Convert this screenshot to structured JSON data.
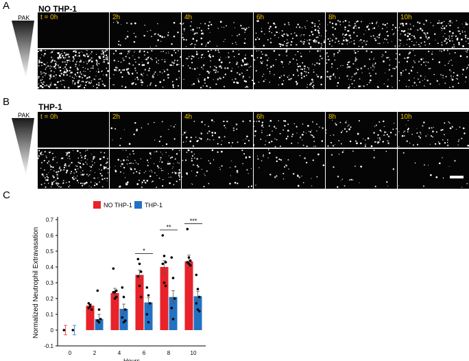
{
  "figure": {
    "panels": [
      {
        "letter": "A",
        "title": "NO THP-1",
        "gradient_label": "PAK",
        "timepoints": [
          "t = 0h",
          "2h",
          "4h",
          "6h",
          "8h",
          "10h"
        ]
      },
      {
        "letter": "B",
        "title": "THP-1",
        "gradient_label": "PAK",
        "timepoints": [
          "t = 0h",
          "2h",
          "4h",
          "6h",
          "8h",
          "10h"
        ]
      }
    ],
    "chart_letter": "C"
  },
  "colors": {
    "no_thp1": "#e8222a",
    "thp1": "#2272c3",
    "timepoint_label": "#f2c200"
  },
  "chart_data": {
    "type": "bar",
    "ylabel": "Normalized Neutrophil Extravasation",
    "xlabel": "Hours",
    "ylim": [
      -0.1,
      0.7
    ],
    "yticks": [
      "-0.1",
      "0",
      "0.1",
      "0.2",
      "0.3",
      "0.4",
      "0.5",
      "0.6",
      "0.7"
    ],
    "categories": [
      "0",
      "2",
      "4",
      "6",
      "8",
      "10"
    ],
    "legend_position": "top",
    "series": [
      {
        "name": "NO THP-1",
        "values": [
          0.0,
          0.155,
          0.235,
          0.35,
          0.4,
          0.435
        ],
        "errors": [
          0.03,
          0.01,
          0.03,
          0.03,
          0.04,
          0.04
        ],
        "points": [
          [
            0.0
          ],
          [
            0.17,
            0.15,
            0.13,
            0.14,
            0.16
          ],
          [
            0.39,
            0.24,
            0.21,
            0.24,
            0.2,
            0.25
          ],
          [
            0.45,
            0.42,
            0.37,
            0.34,
            0.28,
            0.21
          ],
          [
            0.6,
            0.47,
            0.43,
            0.42,
            0.3,
            0.28
          ],
          [
            0.64,
            0.46,
            0.44,
            0.43,
            0.42,
            0.41
          ]
        ]
      },
      {
        "name": "THP-1",
        "values": [
          0.0,
          0.07,
          0.135,
          0.175,
          0.21,
          0.215
        ],
        "errors": [
          0.03,
          0.03,
          0.03,
          0.03,
          0.04,
          0.03
        ],
        "points": [
          [
            0.0
          ],
          [
            0.25,
            0.13,
            0.07,
            0.06,
            0.05
          ],
          [
            0.27,
            0.21,
            0.13,
            0.08,
            0.05,
            0.06
          ],
          [
            0.27,
            0.22,
            0.17,
            0.1,
            0.05
          ],
          [
            0.46,
            0.33,
            0.2,
            0.14,
            0.07
          ],
          [
            0.35,
            0.26,
            0.21,
            0.17,
            0.13,
            0.12
          ]
        ]
      }
    ],
    "significance": [
      {
        "category": "6",
        "label": "*"
      },
      {
        "category": "8",
        "label": "**"
      },
      {
        "category": "10",
        "label": "***"
      }
    ]
  }
}
